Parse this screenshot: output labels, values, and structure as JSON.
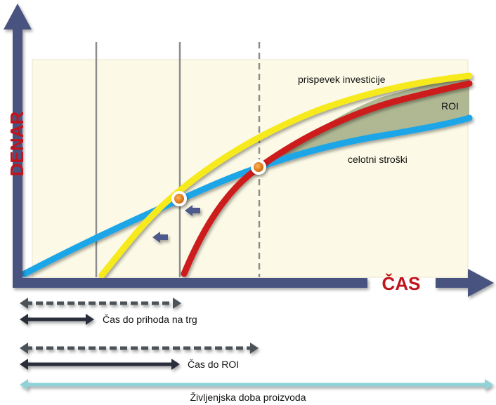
{
  "diagram": {
    "axis_labels": {
      "y": "DENAR",
      "x": "ČAS"
    },
    "curve_labels": {
      "investment": "prispevek investicije",
      "roi": "ROI",
      "costs": "celotni stroški"
    },
    "timeline_labels": {
      "time_to_market": "Čas do prihoda na trg",
      "time_to_roi": "Čas do ROI",
      "product_life": "Življenjska doba proizvoda"
    },
    "colors": {
      "axis": "#4a5380",
      "axis_title": "#c0141c",
      "plot_background": "#fcfae6",
      "investment_curve": "#f6ea1a",
      "roi_curve": "#cc1a1a",
      "cost_curve": "#1aa6e8",
      "roi_fill": "#a6b089",
      "intersection_marker": "#e07c16",
      "left_arrow": "#4f5a8c",
      "span_arrow_dark": "#2b2f3a",
      "span_arrow_dashed": "#4c5258",
      "life_arrow": "#8fd2d8"
    }
  }
}
